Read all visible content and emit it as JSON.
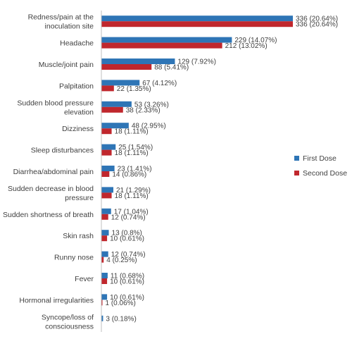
{
  "chart_data": {
    "type": "bar",
    "orientation": "horizontal",
    "categories": [
      [
        "Redness/pain at the",
        "inoculation site"
      ],
      [
        "Headache"
      ],
      [
        "Muscle/joint pain"
      ],
      [
        "Palpitation"
      ],
      [
        "Sudden blood pressure",
        "elevation"
      ],
      [
        "Dizziness"
      ],
      [
        "Sleep disturbances"
      ],
      [
        "Diarrhea/abdominal pain"
      ],
      [
        "Sudden decrease in blood",
        "pressure"
      ],
      [
        "Sudden shortness of breath"
      ],
      [
        "Skin rash"
      ],
      [
        "Runny nose"
      ],
      [
        "Fever"
      ],
      [
        "Hormonal irregularities"
      ],
      [
        "Syncope/loss of",
        "consciousness"
      ]
    ],
    "series": [
      {
        "name": "First Dose",
        "color": "#2e75b6",
        "values": [
          336,
          229,
          129,
          67,
          53,
          48,
          25,
          23,
          21,
          17,
          13,
          12,
          11,
          10,
          3
        ],
        "labels": [
          "336 (20.64%)",
          "229 (14.07%)",
          "129 (7.92%)",
          "67 (4.12%)",
          "53 (3.26%)",
          "48 (2.95%)",
          "25 (1.54%)",
          "23 (1.41%)",
          "21 (1.29%)",
          "17 (1.04%)",
          "13 (0.8%)",
          "12 (0.74%)",
          "11 (0.68%)",
          "10 (0.61%)",
          "3 (0.18%)"
        ]
      },
      {
        "name": "Second Dose",
        "color": "#c0272d",
        "values": [
          336,
          212,
          88,
          22,
          38,
          18,
          18,
          14,
          18,
          12,
          10,
          4,
          10,
          1,
          null
        ],
        "labels": [
          "336 (20.64%)",
          "212 (13.02%)",
          "88 (5.41%)",
          "22 (1.35%)",
          "38 (2.33%)",
          "18 (1.11%)",
          "18 (1.11%)",
          "14 (0.86%)",
          "18 (1.11%)",
          "12 (0.74%)",
          "10 (0.61%)",
          "4 (0.25%)",
          "10 (0.61%)",
          "1 (0.06%)",
          ""
        ]
      }
    ],
    "xlim": [
      0,
      336
    ],
    "axis_color": "#bfbfbf",
    "legend_position": "right",
    "grid": false
  }
}
